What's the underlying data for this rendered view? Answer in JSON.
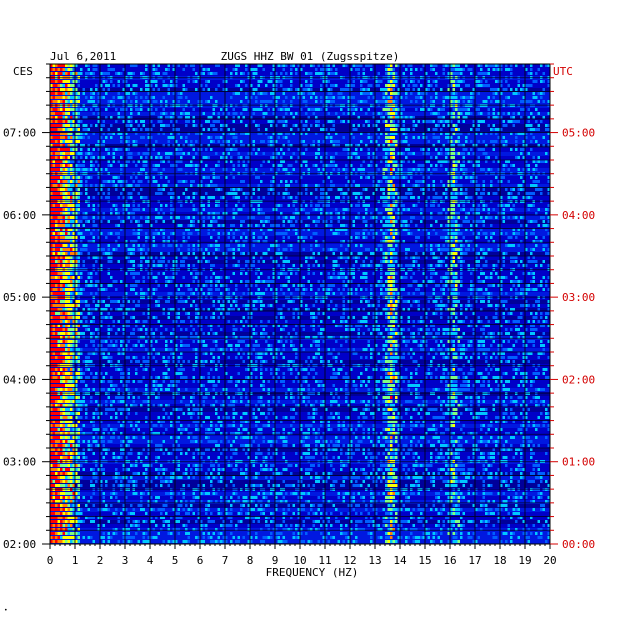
{
  "chart_data": {
    "type": "heatmap",
    "title_left": "Jul 6,2011",
    "title": "ZUGS HHZ BW 01 (Zugsspitze)",
    "left_axis_label": "CES",
    "right_axis_label": "UTC",
    "xlabel": "FREQUENCY (HZ)",
    "xlim": [
      0,
      20
    ],
    "x_ticks": [
      "0",
      "1",
      "2",
      "3",
      "4",
      "5",
      "6",
      "7",
      "8",
      "9",
      "10",
      "11",
      "12",
      "13",
      "14",
      "15",
      "16",
      "17",
      "18",
      "19",
      "20"
    ],
    "left_time_ticks": [
      "07:00",
      "06:00",
      "05:00",
      "04:00",
      "03:00",
      "02:00"
    ],
    "right_time_ticks": [
      "05:00",
      "04:00",
      "03:00",
      "02:00",
      "01:00",
      "00:00"
    ],
    "time_range_local": [
      "02:00",
      "07:50"
    ],
    "time_range_utc": [
      "00:00",
      "05:50"
    ],
    "colormap": [
      "#00008c",
      "#0000ff",
      "#0060ff",
      "#00c8ff",
      "#80ff80",
      "#ffff00",
      "#ff8000",
      "#ff0000"
    ],
    "notable_features": [
      {
        "frequency_hz": 0.4,
        "description": "strong low-frequency band"
      },
      {
        "frequency_hz": 13.6,
        "description": "persistent narrow line"
      },
      {
        "frequency_hz": 16.1,
        "description": "intermittent line"
      }
    ]
  },
  "footer_mark": "•"
}
